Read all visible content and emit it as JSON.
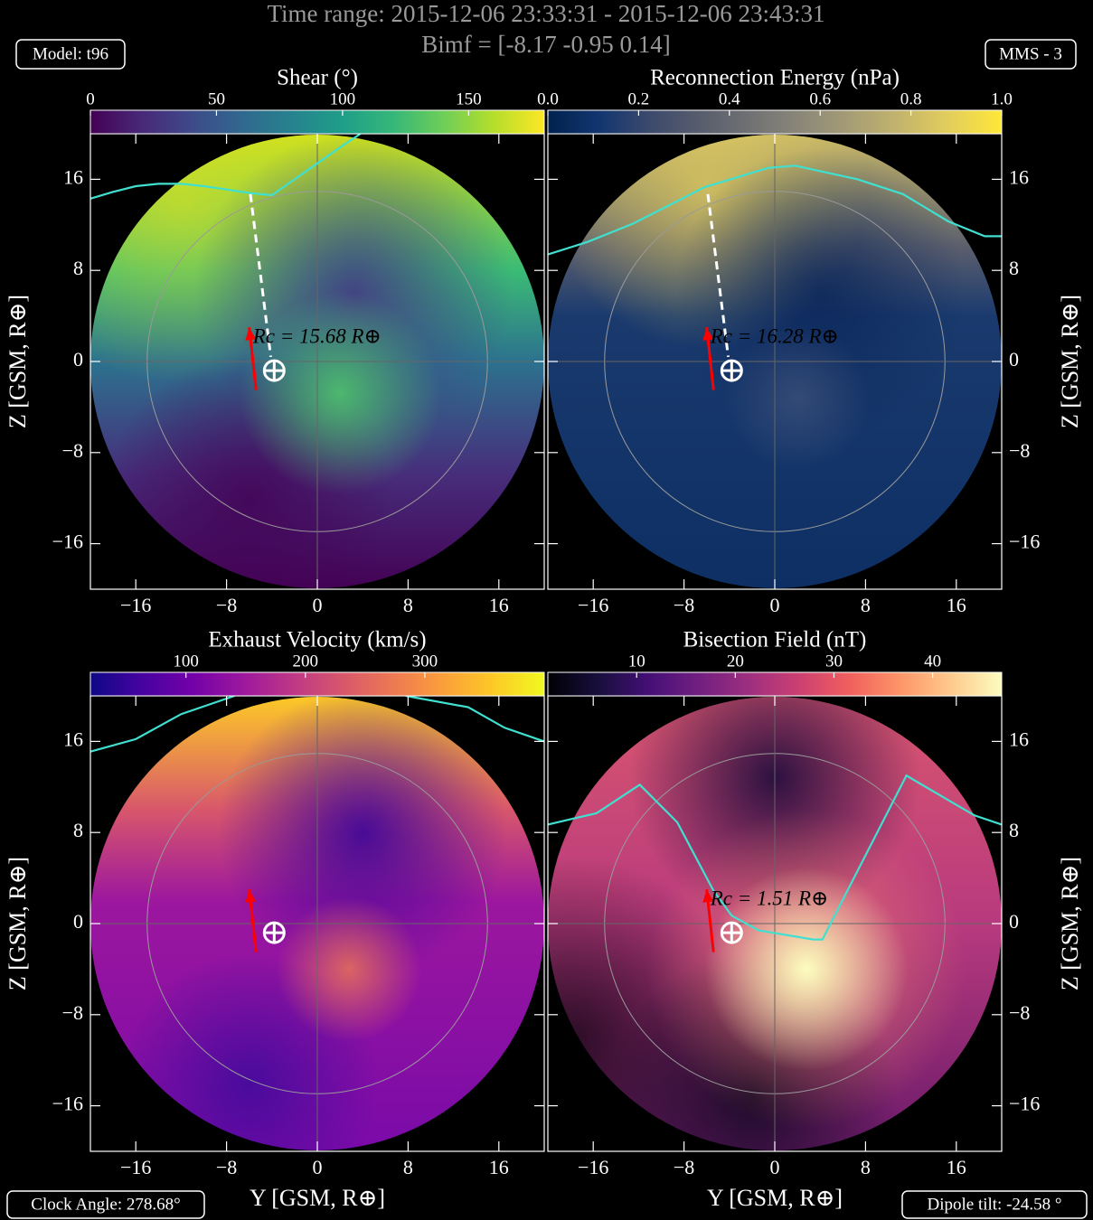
{
  "header": {
    "title": "Time range: 2015-12-06 23:33:31 - 2015-12-06 23:43:31",
    "subtitle": "Bimf = [-8.17 -0.95 0.14]",
    "model": "Model: t96",
    "spacecraft": "MMS - 3",
    "clock_angle": "Clock Angle: 278.68°",
    "dipole_tilt": "Dipole tilt: -24.58 °"
  },
  "chart_data": [
    {
      "type": "heatmap",
      "colorbar_label": "Shear (°)",
      "colormap": "viridis",
      "clim": [
        0,
        180
      ],
      "cticks": [
        0,
        50,
        100,
        150
      ],
      "xlim": [
        -20,
        20
      ],
      "ylim": [
        -20,
        20
      ],
      "xticks": [
        {
          "value": -16,
          "label": "−16"
        },
        {
          "value": -8,
          "label": "−8"
        },
        0,
        8,
        16
      ],
      "yticks": [
        {
          "value": -16,
          "label": "−16"
        },
        {
          "value": -8,
          "label": "−8"
        },
        0,
        8,
        16
      ],
      "ylabel": "Z [GSM, R⊕]",
      "ylabel_side": "left",
      "reference_circle_radius": 15,
      "series": [
        {
          "color": "#40e0d0",
          "x": [
            -20,
            -18,
            -16,
            -14,
            -12,
            -10,
            -8,
            -6,
            -4,
            -2,
            0,
            2,
            3.8
          ],
          "y": [
            14.3,
            14.9,
            15.4,
            15.6,
            15.6,
            15.4,
            15.1,
            14.8,
            14.6,
            16.0,
            17.4,
            18.8,
            20
          ]
        }
      ],
      "dashed_line": {
        "color": "#ffffff",
        "x": [
          -5.9,
          -4.1
        ],
        "y": [
          14.7,
          0.4
        ]
      },
      "arrow": {
        "color": "#ff0000",
        "x": [
          -5.4,
          -6.0
        ],
        "y": [
          -2.5,
          3.0
        ]
      },
      "earth": [
        -3.8,
        -0.8
      ],
      "annotation": "Rc = 15.68 R⊕"
    },
    {
      "type": "heatmap",
      "colorbar_label": "Reconnection Energy (nPa)",
      "colormap": "cividis",
      "clim": [
        0,
        1
      ],
      "cticks": [
        {
          "value": 0,
          "label": "0.0"
        },
        {
          "value": 0.2,
          "label": "0.2"
        },
        {
          "value": 0.4,
          "label": "0.4"
        },
        {
          "value": 0.6,
          "label": "0.6"
        },
        {
          "value": 0.8,
          "label": "0.8"
        },
        {
          "value": 1,
          "label": "1.0"
        }
      ],
      "xlim": [
        -20,
        20
      ],
      "ylim": [
        -20,
        20
      ],
      "xticks": [
        {
          "value": -16,
          "label": "−16"
        },
        {
          "value": -8,
          "label": "−8"
        },
        0,
        8,
        16
      ],
      "yticks": [
        {
          "value": -16,
          "label": "−16"
        },
        {
          "value": -8,
          "label": "−8"
        },
        0,
        8,
        16
      ],
      "ylabel": "Z [GSM, R⊕]",
      "ylabel_side": "right",
      "reference_circle_radius": 15,
      "series": [
        {
          "color": "#40e0d0",
          "x": [
            -20,
            -16.5,
            -12.5,
            -6.2,
            -0.6,
            1.8,
            7.3,
            11.3,
            15.3,
            18.5,
            20
          ],
          "y": [
            9.4,
            10.5,
            12.1,
            15.3,
            17.0,
            17.2,
            16.0,
            14.7,
            12.3,
            11.0,
            11.0
          ]
        }
      ],
      "dashed_line": {
        "color": "#ffffff",
        "x": [
          -5.9,
          -4.1
        ],
        "y": [
          14.7,
          0.4
        ]
      },
      "arrow": {
        "color": "#ff0000",
        "x": [
          -5.4,
          -6.0
        ],
        "y": [
          -2.5,
          3.0
        ]
      },
      "earth": [
        -3.8,
        -0.8
      ],
      "annotation": "Rc = 16.28 R⊕"
    },
    {
      "type": "heatmap",
      "colorbar_label": "Exhaust Velocity (km/s)",
      "colormap": "plasma",
      "clim": [
        20,
        400
      ],
      "cticks": [
        100,
        200,
        300
      ],
      "xlim": [
        -20,
        20
      ],
      "ylim": [
        -20,
        20
      ],
      "xticks": [
        {
          "value": -16,
          "label": "−16"
        },
        {
          "value": -8,
          "label": "−8"
        },
        0,
        8,
        16
      ],
      "yticks": [
        {
          "value": -16,
          "label": "−16"
        },
        {
          "value": -8,
          "label": "−8"
        },
        0,
        8,
        16
      ],
      "xlabel": "Y [GSM, R⊕]",
      "ylabel": "Z [GSM, R⊕]",
      "ylabel_side": "left",
      "reference_circle_radius": 15,
      "series": [
        {
          "color": "#40e0d0",
          "x": [
            -20,
            -16,
            -12,
            -7.3,
            null,
            7.8,
            13.3,
            16.5,
            20
          ],
          "y": [
            15.1,
            16.2,
            18.4,
            20,
            null,
            20,
            19.0,
            17.2,
            16.0
          ]
        }
      ],
      "arrow": {
        "color": "#ff0000",
        "x": [
          -5.4,
          -6.0
        ],
        "y": [
          -2.5,
          3.0
        ]
      },
      "earth": [
        -3.8,
        -0.8
      ]
    },
    {
      "type": "heatmap",
      "colorbar_label": "Bisection Field (nT)",
      "colormap": "magma",
      "clim": [
        1,
        47
      ],
      "cticks": [
        10,
        20,
        30,
        40
      ],
      "xlim": [
        -20,
        20
      ],
      "ylim": [
        -20,
        20
      ],
      "xticks": [
        {
          "value": -16,
          "label": "−16"
        },
        {
          "value": -8,
          "label": "−8"
        },
        0,
        8,
        16
      ],
      "yticks": [
        {
          "value": -16,
          "label": "−16"
        },
        {
          "value": -8,
          "label": "−8"
        },
        0,
        8,
        16
      ],
      "xlabel": "Y [GSM, R⊕]",
      "ylabel": "Z [GSM, R⊕]",
      "ylabel_side": "right",
      "reference_circle_radius": 15,
      "series": [
        {
          "color": "#40e0d0",
          "x": [
            -20,
            -15.7,
            -11.9,
            -8.6,
            -5.4,
            -3.8,
            -1.4,
            3.4,
            4.2,
            11.6,
            14.5,
            17.6,
            20
          ],
          "y": [
            8.7,
            9.7,
            12.2,
            8.9,
            2.9,
            0.7,
            -0.6,
            -1.4,
            -1.4,
            13.0,
            11.3,
            9.5,
            8.7
          ]
        }
      ],
      "arrow": {
        "color": "#ff0000",
        "x": [
          -5.4,
          -6.0
        ],
        "y": [
          -2.5,
          3.0
        ]
      },
      "earth": [
        -3.8,
        -0.8
      ],
      "annotation": "Rc = 1.51 R⊕"
    }
  ]
}
